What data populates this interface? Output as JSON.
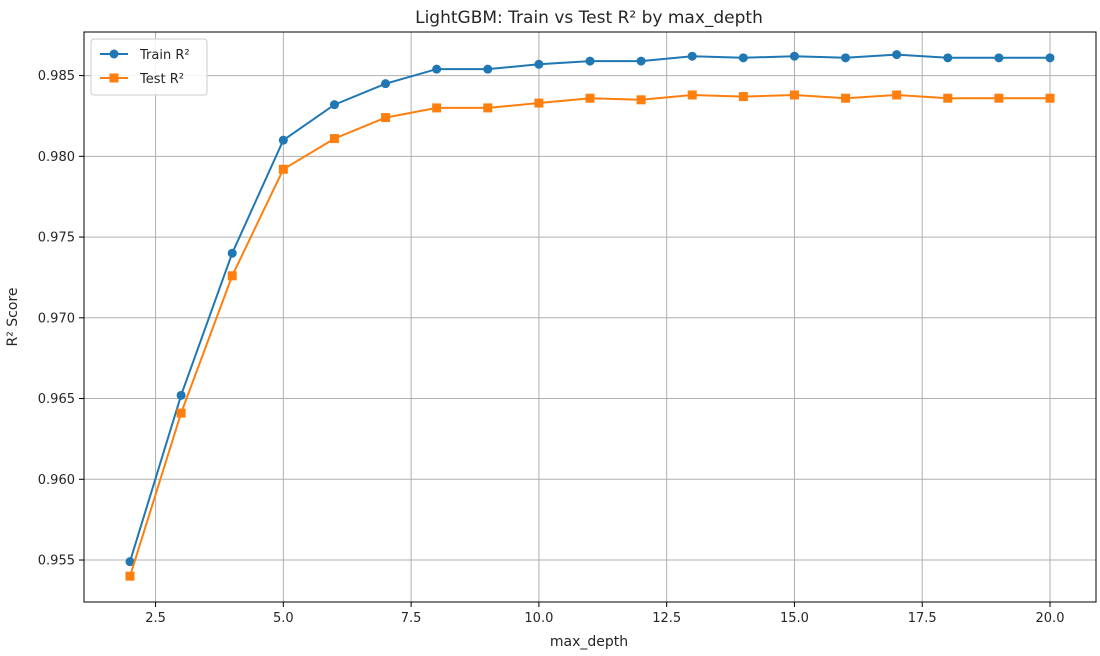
{
  "chart_data": {
    "type": "line",
    "title": "LightGBM: Train vs Test R² by max_depth",
    "xlabel": "max_depth",
    "ylabel": "R² Score",
    "xlim": [
      1.1,
      20.9
    ],
    "ylim": [
      0.9524,
      0.9877
    ],
    "xticks": [
      "2.5",
      "5.0",
      "7.5",
      "10.0",
      "12.5",
      "15.0",
      "17.5",
      "20.0"
    ],
    "yticks": [
      "0.955",
      "0.960",
      "0.965",
      "0.970",
      "0.975",
      "0.980",
      "0.985"
    ],
    "grid": true,
    "legend_position": "top-left",
    "x": [
      2,
      3,
      4,
      5,
      6,
      7,
      8,
      9,
      10,
      11,
      12,
      13,
      14,
      15,
      16,
      17,
      18,
      19,
      20
    ],
    "series": [
      {
        "name": "Train R²",
        "color": "#1f77b4",
        "marker": "circle",
        "values": [
          0.9549,
          0.9652,
          0.974,
          0.981,
          0.9832,
          0.9845,
          0.9854,
          0.9854,
          0.9857,
          0.9859,
          0.9859,
          0.9862,
          0.9861,
          0.9862,
          0.9861,
          0.9863,
          0.9861,
          0.9861,
          0.9861
        ]
      },
      {
        "name": "Test R²",
        "color": "#ff7f0e",
        "marker": "square",
        "values": [
          0.954,
          0.9641,
          0.9726,
          0.9792,
          0.9811,
          0.9824,
          0.983,
          0.983,
          0.9833,
          0.9836,
          0.9835,
          0.9838,
          0.9837,
          0.9838,
          0.9836,
          0.9838,
          0.9836,
          0.9836,
          0.9836
        ]
      }
    ]
  }
}
